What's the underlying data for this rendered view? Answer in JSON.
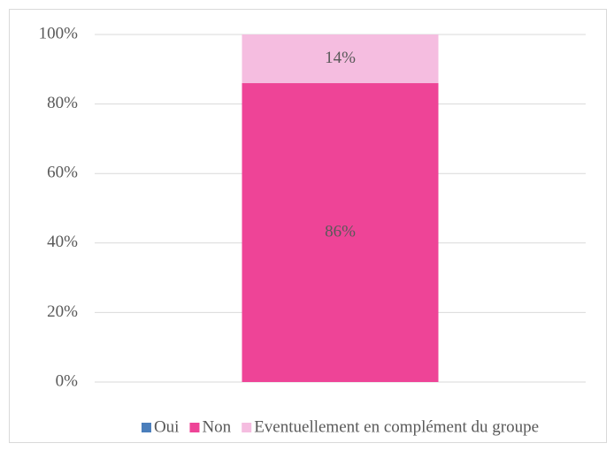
{
  "chart_data": {
    "type": "stacked_bar",
    "categories": [
      null
    ],
    "series": [
      {
        "name": "Oui",
        "color": "#4a7ebb",
        "values": [
          0
        ]
      },
      {
        "name": "Non",
        "color": "#ee4497",
        "values": [
          86
        ],
        "value_labels": [
          "86%"
        ]
      },
      {
        "name": "Eventuellement en complément du groupe",
        "color": "#f5bde0",
        "values": [
          14
        ],
        "value_labels": [
          "14%"
        ]
      }
    ],
    "ylim": [
      0,
      100
    ],
    "yticks": [
      {
        "value": 0,
        "label": "0%"
      },
      {
        "value": 20,
        "label": "20%"
      },
      {
        "value": 40,
        "label": "40%"
      },
      {
        "value": 60,
        "label": "60%"
      },
      {
        "value": 80,
        "label": "80%"
      },
      {
        "value": 100,
        "label": "100%"
      }
    ],
    "grid": true,
    "legend": "bottom"
  }
}
